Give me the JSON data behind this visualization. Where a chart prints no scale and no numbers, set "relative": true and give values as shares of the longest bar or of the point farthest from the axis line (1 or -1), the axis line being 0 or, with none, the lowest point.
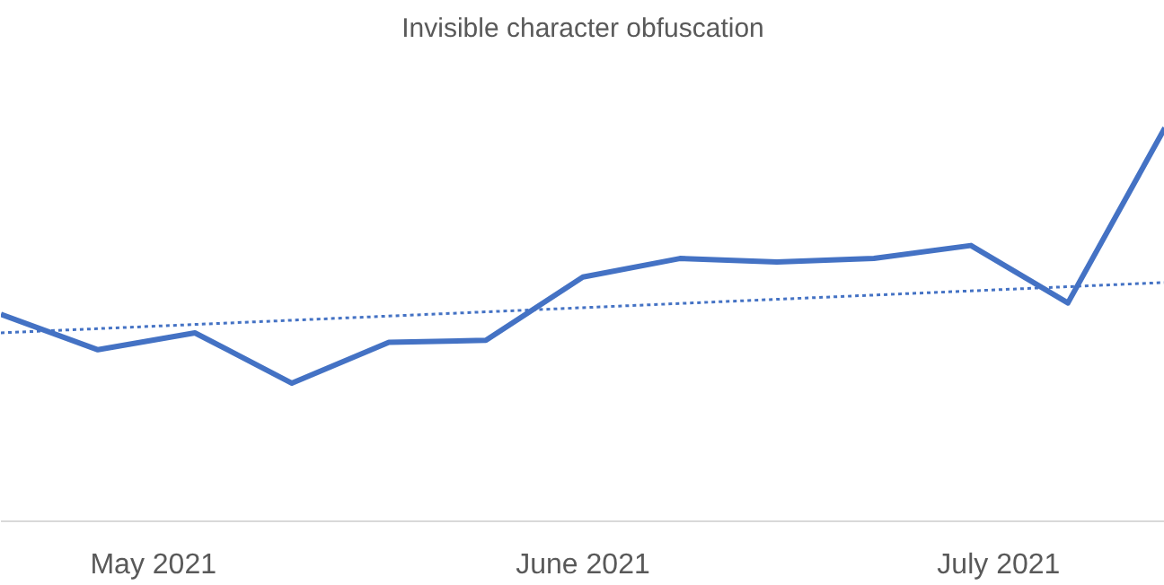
{
  "chart_data": {
    "type": "line",
    "title": "Invisible character obfuscation",
    "relative": true,
    "x": [
      "2021-04-20",
      "2021-04-27",
      "2021-05-04",
      "2021-05-11",
      "2021-05-18",
      "2021-05-25",
      "2021-06-01",
      "2021-06-08",
      "2021-06-15",
      "2021-06-22",
      "2021-06-29",
      "2021-07-06",
      "2021-07-13"
    ],
    "xlim": [
      "2021-04-20",
      "2021-07-13"
    ],
    "xticks": [
      {
        "value": "2021-05-01",
        "label": "May 2021"
      },
      {
        "value": "2021-06-01",
        "label": "June 2021"
      },
      {
        "value": "2021-07-01",
        "label": "July 2021"
      }
    ],
    "series": [
      {
        "color": "#4472c4",
        "values": [
          0.526,
          0.436,
          0.479,
          0.351,
          0.455,
          0.46,
          0.621,
          0.668,
          0.659,
          0.668,
          0.701,
          0.555,
          1.0
        ]
      },
      {
        "type": "line",
        "line_style": "dotted",
        "color": "#4472c4",
        "x": [
          "2021-04-20",
          "2021-07-13"
        ],
        "values": [
          0.479,
          0.607
        ]
      }
    ],
    "grid": false,
    "marker": "none",
    "line_style": "solid"
  }
}
